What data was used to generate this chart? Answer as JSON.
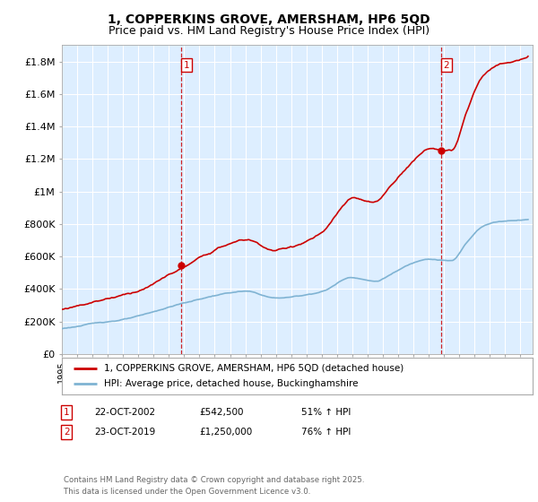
{
  "title": "1, COPPERKINS GROVE, AMERSHAM, HP6 5QD",
  "subtitle": "Price paid vs. HM Land Registry's House Price Index (HPI)",
  "red_label": "1, COPPERKINS GROVE, AMERSHAM, HP6 5QD (detached house)",
  "blue_label": "HPI: Average price, detached house, Buckinghamshire",
  "footnote": "Contains HM Land Registry data © Crown copyright and database right 2025.\nThis data is licensed under the Open Government Licence v3.0.",
  "transactions": [
    {
      "num": "1",
      "date": "22-OCT-2002",
      "price": "£542,500",
      "pct": "51% ↑ HPI"
    },
    {
      "num": "2",
      "date": "23-OCT-2019",
      "price": "£1,250,000",
      "pct": "76% ↑ HPI"
    }
  ],
  "t1_year": 2002.81,
  "t1_price": 542500,
  "t2_year": 2019.81,
  "t2_price": 1250000,
  "ylim": [
    0,
    1900000
  ],
  "yticks": [
    0,
    200000,
    400000,
    600000,
    800000,
    1000000,
    1200000,
    1400000,
    1600000,
    1800000
  ],
  "ytick_labels": [
    "£0",
    "£200K",
    "£400K",
    "£600K",
    "£800K",
    "£1M",
    "£1.2M",
    "£1.4M",
    "£1.6M",
    "£1.8M"
  ],
  "xlim_start": 1995.0,
  "xlim_end": 2025.8,
  "red_color": "#cc0000",
  "blue_color": "#7fb3d3",
  "plot_bg_color": "#ddeeff",
  "dashed_color": "#cc0000",
  "background_color": "#ffffff",
  "grid_color": "#ffffff",
  "title_fontsize": 10,
  "subtitle_fontsize": 9
}
